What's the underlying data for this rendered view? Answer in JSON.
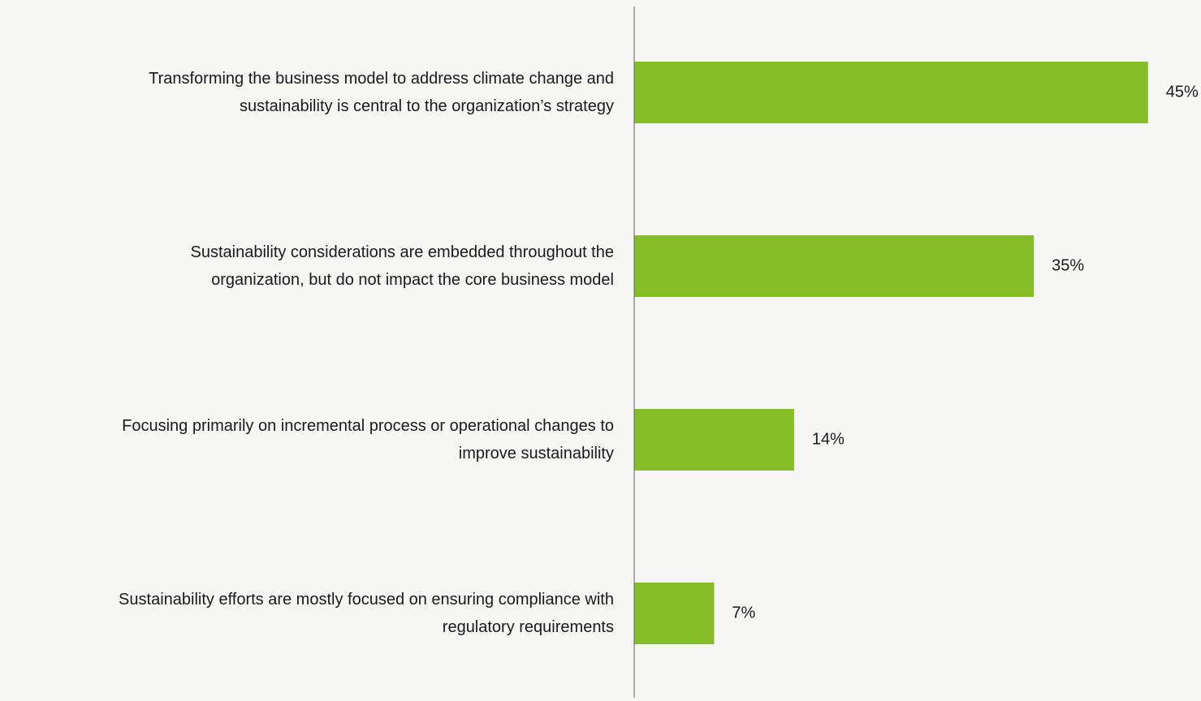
{
  "chart_data": {
    "type": "hbar",
    "categories": [
      "Transforming the business model to address climate change and\nsustainability is central to the organization’s strategy",
      "Sustainability considerations are embedded throughout the\norganization, but do not impact the core business model",
      "Focusing primarily on incremental process or operational changes to\nimprove sustainability",
      "Sustainability efforts are mostly focused on ensuring compliance with\nregulatory requirements"
    ],
    "values": [
      45,
      35,
      14,
      7
    ],
    "value_labels": [
      "45%",
      "35%",
      "14%",
      "7%"
    ],
    "color": "#86bc25",
    "xlim": [
      0,
      49
    ]
  }
}
